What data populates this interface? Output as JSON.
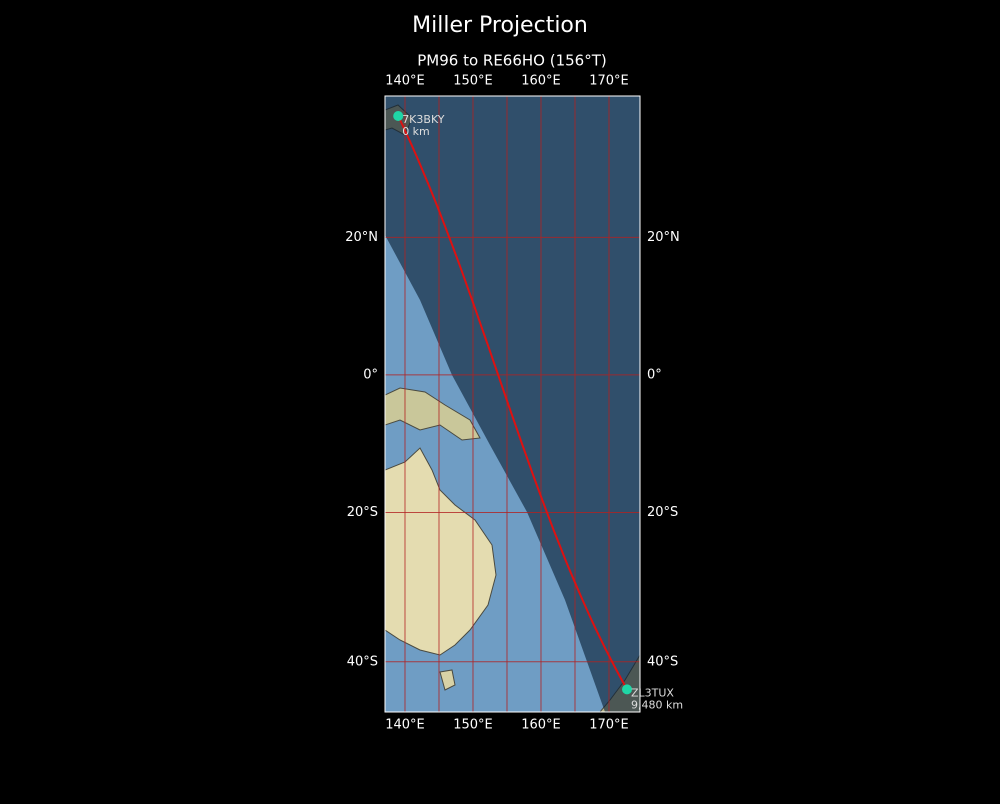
{
  "map": {
    "title": "Miller Projection",
    "subtitle": "PM96 to RE66HO (156°T)",
    "projection": "miller",
    "xlim": [
      137.06,
      174.56
    ],
    "ylim": [
      -46.1,
      39.0
    ],
    "xticks": [
      {
        "value": 140,
        "label": "140°E"
      },
      {
        "value": 150,
        "label": "150°E"
      },
      {
        "value": 160,
        "label": "160°E"
      },
      {
        "value": 170,
        "label": "170°E"
      }
    ],
    "yticks": [
      {
        "value": 20,
        "label": "20°N"
      },
      {
        "value": 0,
        "label": "0°"
      },
      {
        "value": -20,
        "label": "20°S"
      },
      {
        "value": -40,
        "label": "40°S"
      }
    ],
    "xgrid": [
      140,
      145,
      150,
      155,
      160,
      165,
      170
    ],
    "grid_color": "#b22222",
    "path_color": "#dd1111",
    "marker_color": "#1fd6a6",
    "stations": [
      {
        "name": "7K3BKY",
        "distance": "0 km",
        "lon": 139.0,
        "lat": 36.45
      },
      {
        "name": "ZL3TUX",
        "distance": "9,480 km",
        "lon": 172.65,
        "lat": -43.4
      }
    ]
  }
}
